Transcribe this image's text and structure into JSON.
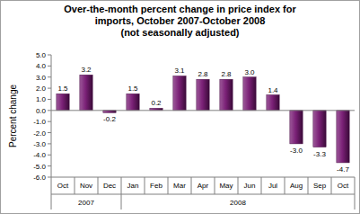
{
  "chart_data": {
    "type": "bar",
    "title": "Over-the-month percent change in price index for imports, October 2007-October 2008",
    "subtitle": "(not seasonally adjusted)",
    "y_label": "Percent change",
    "categories": [
      "Oct",
      "Nov",
      "Dec",
      "Jan",
      "Feb",
      "Mar",
      "Apr",
      "May",
      "Jun",
      "Jul",
      "Aug",
      "Sep",
      "Oct"
    ],
    "x_groups": [
      {
        "label": "2007",
        "span": 3
      },
      {
        "label": "2008",
        "span": 10
      }
    ],
    "values": [
      1.5,
      3.2,
      -0.2,
      1.5,
      0.2,
      3.1,
      2.8,
      2.8,
      3.0,
      1.4,
      -3.0,
      -3.3,
      -4.7
    ],
    "value_labels": [
      "1.5",
      "3.2",
      "-0.2",
      "1.5",
      "0.2",
      "3.1",
      "2.8",
      "2.8",
      "3.0",
      "1.4",
      "-3.0",
      "-3.3",
      "-4.7"
    ],
    "data_labels": true,
    "color": "#7b2177",
    "ylim": [
      -6,
      5
    ],
    "yticks": [
      {
        "value": -6,
        "label": "-6.0"
      },
      {
        "value": -5,
        "label": "-5.0"
      },
      {
        "value": -4,
        "label": "-4.0"
      },
      {
        "value": -3,
        "label": "-3.0"
      },
      {
        "value": -2,
        "label": "-2.0"
      },
      {
        "value": -1,
        "label": "-1.0"
      },
      {
        "value": 0,
        "label": "0.0"
      },
      {
        "value": 1,
        "label": "1.0"
      },
      {
        "value": 2,
        "label": "2.0"
      },
      {
        "value": 3,
        "label": "3.0"
      },
      {
        "value": 4,
        "label": "4.0"
      },
      {
        "value": 5,
        "label": "5.0"
      }
    ],
    "grid": false
  }
}
